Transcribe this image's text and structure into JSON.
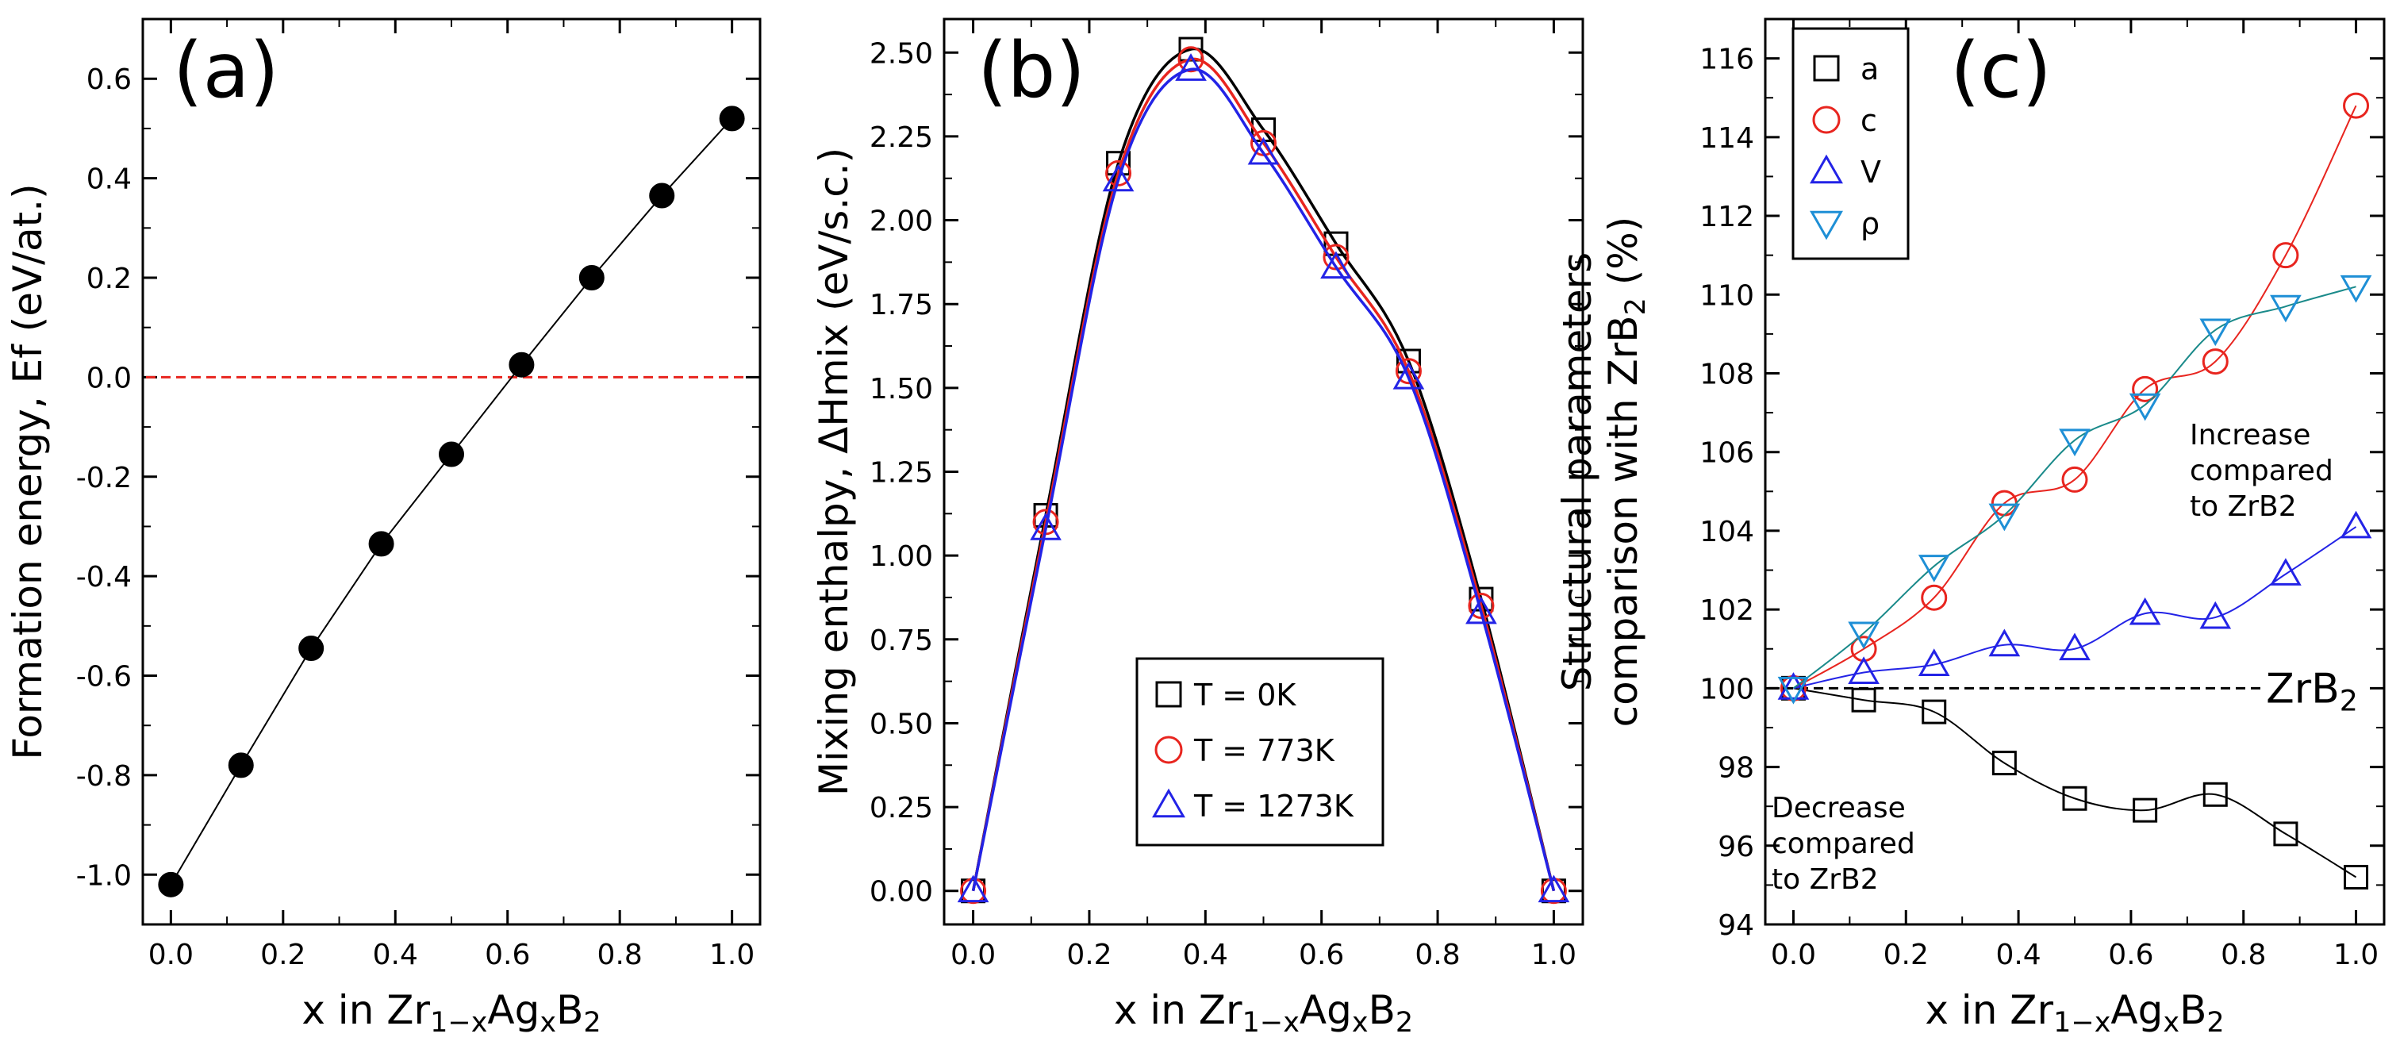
{
  "chart_data": [
    {
      "id": "a",
      "type": "line",
      "panel_label": "(a)",
      "xlabel": {
        "main": "x in Zr",
        "sub1": "1−x",
        "mid": "Ag",
        "sub2": "x",
        "end": "B",
        "sub3": "2"
      },
      "ylabel": "Formation energy, Ef (eV/at.)",
      "xlim": [
        -0.05,
        1.05
      ],
      "ylim": [
        -1.1,
        0.72
      ],
      "xticks": [
        "0.0",
        "0.2",
        "0.4",
        "0.6",
        "0.8",
        "1.0"
      ],
      "yticks": [
        "-1.0",
        "-0.8",
        "-0.6",
        "-0.4",
        "-0.2",
        "0.0",
        "0.2",
        "0.4",
        "0.6"
      ],
      "reference_line": {
        "y": 0.0,
        "color": "#e8251f",
        "style": "dashed"
      },
      "series": [
        {
          "name": "Ef",
          "marker": "filled-circle",
          "color": "#000000",
          "x": [
            0.0,
            0.125,
            0.25,
            0.375,
            0.5,
            0.625,
            0.75,
            0.875,
            1.0
          ],
          "y": [
            -1.02,
            -0.78,
            -0.545,
            -0.335,
            -0.155,
            0.025,
            0.2,
            0.365,
            0.52
          ]
        }
      ]
    },
    {
      "id": "b",
      "type": "line",
      "panel_label": "(b)",
      "xlabel": {
        "main": "x in Zr",
        "sub1": "1−x",
        "mid": "Ag",
        "sub2": "x",
        "end": "B",
        "sub3": "2"
      },
      "ylabel": "Mixing enthalpy, ΔHmix (eV/s.c.)",
      "xlim": [
        -0.05,
        1.05
      ],
      "ylim": [
        -0.1,
        2.6
      ],
      "xticks": [
        "0.0",
        "0.2",
        "0.4",
        "0.6",
        "0.8",
        "1.0"
      ],
      "yticks": [
        "0.00",
        "0.25",
        "0.50",
        "0.75",
        "1.00",
        "1.25",
        "1.50",
        "1.75",
        "2.00",
        "2.25",
        "2.50"
      ],
      "legend": {
        "position": "lower-right"
      },
      "series": [
        {
          "name": "T = 0K",
          "marker": "square",
          "color": "#000000",
          "x": [
            0.0,
            0.125,
            0.25,
            0.375,
            0.5,
            0.625,
            0.75,
            0.875,
            1.0
          ],
          "y": [
            0.0,
            1.12,
            2.17,
            2.51,
            2.27,
            1.93,
            1.58,
            0.87,
            0.0
          ]
        },
        {
          "name": "T = 773K",
          "marker": "circle",
          "color": "#e8251f",
          "x": [
            0.0,
            0.125,
            0.25,
            0.375,
            0.5,
            0.625,
            0.75,
            0.875,
            1.0
          ],
          "y": [
            0.0,
            1.1,
            2.14,
            2.48,
            2.23,
            1.89,
            1.55,
            0.85,
            0.0
          ]
        },
        {
          "name": "T = 1273K",
          "marker": "triangle-up",
          "color": "#2323e6",
          "x": [
            0.0,
            0.125,
            0.25,
            0.375,
            0.5,
            0.625,
            0.75,
            0.875,
            1.0
          ],
          "y": [
            0.0,
            1.08,
            2.12,
            2.45,
            2.2,
            1.86,
            1.53,
            0.83,
            0.0
          ]
        }
      ]
    },
    {
      "id": "c",
      "type": "line",
      "panel_label": "(c)",
      "xlabel": {
        "main": "x in Zr",
        "sub1": "1−x",
        "mid": "Ag",
        "sub2": "x",
        "end": "B",
        "sub3": "2"
      },
      "ylabel": {
        "line1": "Structural parameters",
        "line2_main": "comparison with ZrB",
        "line2_sub": "2",
        "line2_end": " (%)"
      },
      "xlim": [
        -0.05,
        1.05
      ],
      "ylim": [
        94,
        117
      ],
      "xticks": [
        "0.0",
        "0.2",
        "0.4",
        "0.6",
        "0.8",
        "1.0"
      ],
      "yticks": [
        "94",
        "96",
        "98",
        "100",
        "102",
        "104",
        "106",
        "108",
        "110",
        "112",
        "114",
        "116"
      ],
      "reference_line": {
        "y": 100,
        "color": "#000000",
        "style": "dashed",
        "label_main": "ZrB",
        "label_sub": "2"
      },
      "annotations": [
        [
          "Increase",
          "compared",
          "to ZrB2"
        ],
        [
          "Decrease",
          "compared",
          "to ZrB2"
        ]
      ],
      "legend": {
        "position": "top-left"
      },
      "series": [
        {
          "name": "a",
          "marker": "square",
          "color": "#000000",
          "x": [
            0.0,
            0.125,
            0.25,
            0.375,
            0.5,
            0.625,
            0.75,
            0.875,
            1.0
          ],
          "y": [
            100.0,
            99.7,
            99.4,
            98.1,
            97.2,
            96.9,
            97.3,
            96.3,
            95.2
          ]
        },
        {
          "name": "c",
          "marker": "circle",
          "color": "#e8251f",
          "x": [
            0.0,
            0.125,
            0.25,
            0.375,
            0.5,
            0.625,
            0.75,
            0.875,
            1.0
          ],
          "y": [
            100.0,
            101.0,
            102.3,
            104.7,
            105.3,
            107.6,
            108.3,
            111.0,
            114.8
          ]
        },
        {
          "name": "V",
          "marker": "triangle-up",
          "color": "#2323e6",
          "x": [
            0.0,
            0.125,
            0.25,
            0.375,
            0.5,
            0.625,
            0.75,
            0.875,
            1.0
          ],
          "y": [
            100.0,
            100.4,
            100.6,
            101.1,
            101.0,
            101.9,
            101.8,
            102.9,
            104.1
          ]
        },
        {
          "name": "ρ",
          "marker": "triangle-down",
          "color": "#1a8a8a",
          "marker_color": "#1e8fd6",
          "x": [
            0.0,
            0.125,
            0.25,
            0.375,
            0.5,
            0.625,
            0.75,
            0.875,
            1.0
          ],
          "y": [
            100.0,
            101.4,
            103.1,
            104.4,
            106.3,
            107.2,
            109.1,
            109.7,
            110.2
          ]
        }
      ]
    }
  ]
}
